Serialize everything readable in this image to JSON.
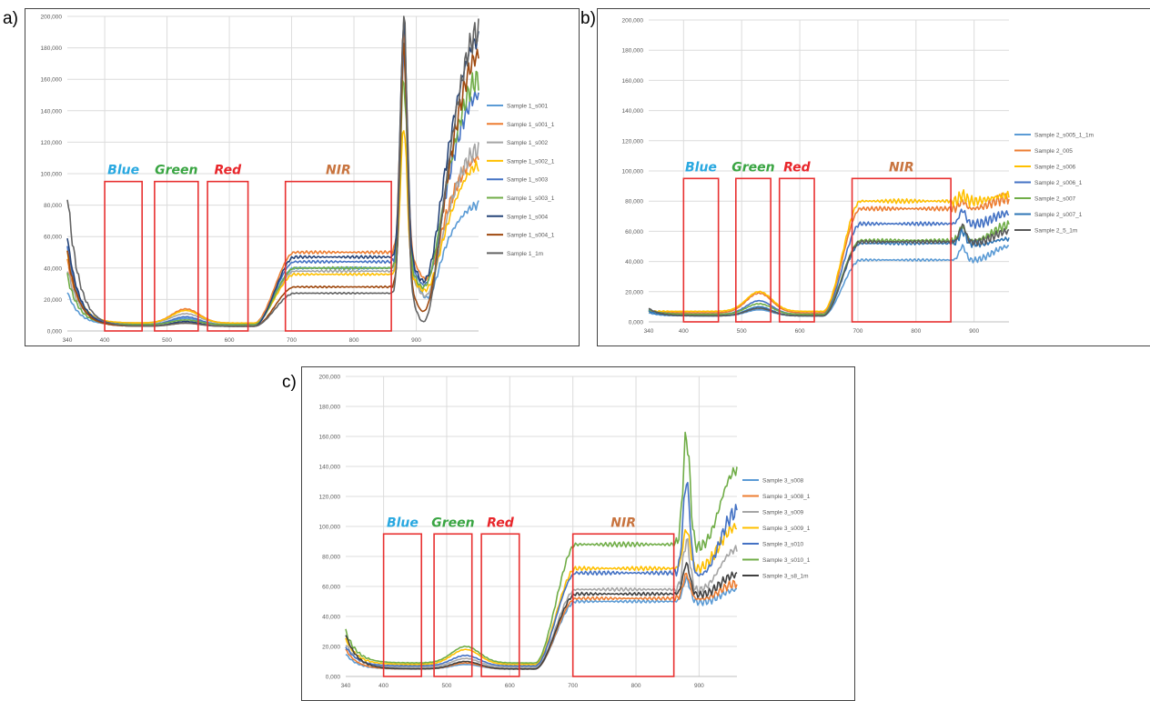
{
  "panels": [
    {
      "label": "a)"
    },
    {
      "label": "b)"
    },
    {
      "label": "c)"
    }
  ],
  "band_colors": {
    "Blue": "#29a8e0",
    "Green": "#3aa543",
    "Red": "#e8262b",
    "NIR": "#c8743f",
    "box": "#e83030"
  },
  "chart_data": [
    {
      "type": "line",
      "title": "",
      "xlabel": "",
      "ylabel": "",
      "xlim": [
        340,
        1000
      ],
      "ylim": [
        0,
        200000
      ],
      "x_ticks": [
        "340",
        "400",
        "500",
        "600",
        "700",
        "800",
        "900"
      ],
      "y_ticks": [
        "0,000",
        "20,000",
        "40,000",
        "60,000",
        "80,000",
        "100,000",
        "120,000",
        "140,000",
        "160,000",
        "180,000",
        "200,000"
      ],
      "grid": true,
      "legend_position": "right",
      "bands": [
        {
          "name": "Blue",
          "x_range": [
            400,
            460
          ],
          "top": 95000
        },
        {
          "name": "Green",
          "x_range": [
            480,
            550
          ],
          "top": 95000
        },
        {
          "name": "Red",
          "x_range": [
            565,
            630
          ],
          "top": 95000
        },
        {
          "name": "NIR",
          "x_range": [
            690,
            860
          ],
          "top": 95000
        }
      ],
      "series": [
        {
          "name": "Sample 1_s001",
          "color": "#5b9bd5",
          "level": 40000,
          "green_peak": 8000,
          "blue_base": 4000,
          "start": 25000,
          "spike_top": 185000,
          "end": 80000
        },
        {
          "name": "Sample 1_s001_1",
          "color": "#ed7d31",
          "level": 50000,
          "green_peak": 14000,
          "blue_base": 5000,
          "start": 45000,
          "spike_top": 190000,
          "end": 110000
        },
        {
          "name": "Sample 1_s002",
          "color": "#a5a5a5",
          "level": 38000,
          "green_peak": 11000,
          "blue_base": 5000,
          "start": 40000,
          "spike_top": 175000,
          "end": 115000
        },
        {
          "name": "Sample 1_s002_1",
          "color": "#ffc000",
          "level": 36000,
          "green_peak": 13000,
          "blue_base": 5000,
          "start": 50000,
          "spike_top": 130000,
          "end": 105000
        },
        {
          "name": "Sample 1_s003",
          "color": "#4472c4",
          "level": 44000,
          "green_peak": 9000,
          "blue_base": 4000,
          "start": 55000,
          "spike_top": 180000,
          "end": 150000
        },
        {
          "name": "Sample 1_s003_1",
          "color": "#70ad47",
          "level": 40000,
          "green_peak": 7000,
          "blue_base": 4000,
          "start": 35000,
          "spike_top": 160000,
          "end": 160000
        },
        {
          "name": "Sample 1_s004",
          "color": "#264478",
          "level": 47000,
          "green_peak": 6000,
          "blue_base": 3000,
          "start": 60000,
          "spike_top": 195000,
          "end": 185000
        },
        {
          "name": "Sample 1_s004_1",
          "color": "#9e480e",
          "level": 28000,
          "green_peak": 5000,
          "blue_base": 3000,
          "start": 50000,
          "spike_top": 180000,
          "end": 175000
        },
        {
          "name": "Sample 1_1m",
          "color": "#636363",
          "level": 24000,
          "green_peak": 5000,
          "blue_base": 3000,
          "start": 88000,
          "spike_top": 200000,
          "end": 190000
        }
      ]
    },
    {
      "type": "line",
      "title": "",
      "xlabel": "",
      "ylabel": "",
      "xlim": [
        340,
        960
      ],
      "ylim": [
        0,
        200000
      ],
      "x_ticks": [
        "340",
        "400",
        "500",
        "600",
        "700",
        "800",
        "900"
      ],
      "y_ticks": [
        "0,000",
        "20,000",
        "40,000",
        "60,000",
        "80,000",
        "100,000",
        "120,000",
        "140,000",
        "160,000",
        "180,000",
        "200,000"
      ],
      "grid": true,
      "legend_position": "right",
      "bands": [
        {
          "name": "Blue",
          "x_range": [
            400,
            460
          ],
          "top": 95000
        },
        {
          "name": "Green",
          "x_range": [
            490,
            550
          ],
          "top": 95000
        },
        {
          "name": "Red",
          "x_range": [
            565,
            625
          ],
          "top": 95000
        },
        {
          "name": "NIR",
          "x_range": [
            690,
            860
          ],
          "top": 95000
        }
      ],
      "series": [
        {
          "name": "Sample 2_s005_1_1m",
          "color": "#5b9bd5",
          "level": 41000,
          "green_peak": 8000,
          "blue_base": 4000,
          "start": 6000,
          "spike_top": 50000,
          "end": 50000
        },
        {
          "name": "Sample 2_005",
          "color": "#ed7d31",
          "level": 75000,
          "green_peak": 19000,
          "blue_base": 6000,
          "start": 7000,
          "spike_top": 80000,
          "end": 82000
        },
        {
          "name": "Sample 2_s006",
          "color": "#ffc000",
          "level": 80000,
          "green_peak": 20000,
          "blue_base": 7000,
          "start": 7000,
          "spike_top": 84000,
          "end": 84000
        },
        {
          "name": "Sample 2_s006_1",
          "color": "#4472c4",
          "level": 65000,
          "green_peak": 14000,
          "blue_base": 5000,
          "start": 8000,
          "spike_top": 74000,
          "end": 72000
        },
        {
          "name": "Sample 2_s007",
          "color": "#70ad47",
          "level": 54000,
          "green_peak": 12000,
          "blue_base": 5000,
          "start": 8000,
          "spike_top": 63000,
          "end": 64000
        },
        {
          "name": "Sample 2_s007_1",
          "color": "#2e75b6",
          "level": 52000,
          "green_peak": 10000,
          "blue_base": 4000,
          "start": 7000,
          "spike_top": 60000,
          "end": 55000
        },
        {
          "name": "Sample 2_5_1m",
          "color": "#595959",
          "level": 53000,
          "green_peak": 9000,
          "blue_base": 4000,
          "start": 9000,
          "spike_top": 64000,
          "end": 60000
        }
      ]
    },
    {
      "type": "line",
      "title": "",
      "xlabel": "",
      "ylabel": "",
      "xlim": [
        340,
        960
      ],
      "ylim": [
        0,
        200000
      ],
      "x_ticks": [
        "340",
        "400",
        "500",
        "600",
        "700",
        "800",
        "900"
      ],
      "y_ticks": [
        "0,000",
        "20,000",
        "40,000",
        "60,000",
        "80,000",
        "100,000",
        "120,000",
        "140,000",
        "160,000",
        "180,000",
        "200,000"
      ],
      "grid": true,
      "legend_position": "right",
      "bands": [
        {
          "name": "Blue",
          "x_range": [
            400,
            460
          ],
          "top": 95000
        },
        {
          "name": "Green",
          "x_range": [
            480,
            540
          ],
          "top": 95000
        },
        {
          "name": "Red",
          "x_range": [
            555,
            615
          ],
          "top": 95000
        },
        {
          "name": "NIR",
          "x_range": [
            700,
            860
          ],
          "top": 95000
        }
      ],
      "series": [
        {
          "name": "Sample 3_s008",
          "color": "#5b9bd5",
          "level": 50000,
          "green_peak": 8000,
          "blue_base": 5000,
          "start": 15000,
          "spike_top": 65000,
          "end": 58000
        },
        {
          "name": "Sample 3_s008_1",
          "color": "#ed7d31",
          "level": 52000,
          "green_peak": 9000,
          "blue_base": 5000,
          "start": 18000,
          "spike_top": 68000,
          "end": 62000
        },
        {
          "name": "Sample 3_s009",
          "color": "#a5a5a5",
          "level": 58000,
          "green_peak": 12000,
          "blue_base": 6000,
          "start": 22000,
          "spike_top": 90000,
          "end": 85000
        },
        {
          "name": "Sample 3_s009_1",
          "color": "#ffc000",
          "level": 72000,
          "green_peak": 18000,
          "blue_base": 8000,
          "start": 25000,
          "spike_top": 98000,
          "end": 100000
        },
        {
          "name": "Sample 3_s010",
          "color": "#4472c4",
          "level": 69000,
          "green_peak": 14000,
          "blue_base": 7000,
          "start": 20000,
          "spike_top": 130000,
          "end": 110000
        },
        {
          "name": "Sample 3_s010_1",
          "color": "#70ad47",
          "level": 88000,
          "green_peak": 20000,
          "blue_base": 9000,
          "start": 30000,
          "spike_top": 160000,
          "end": 138000
        },
        {
          "name": "Sample 3_s8_1m",
          "color": "#404040",
          "level": 55000,
          "green_peak": 10000,
          "blue_base": 5000,
          "start": 28000,
          "spike_top": 75000,
          "end": 68000
        }
      ]
    }
  ]
}
